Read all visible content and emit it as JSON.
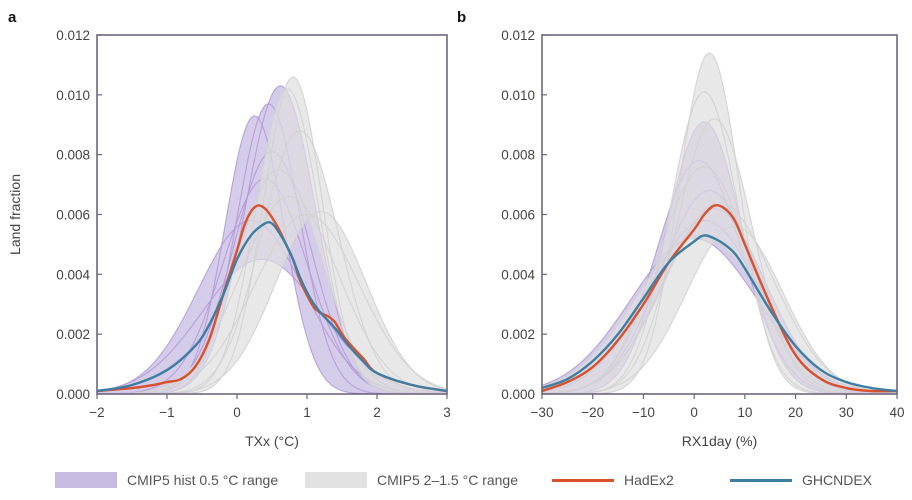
{
  "chart_data": [
    {
      "panel": "a",
      "type": "line",
      "xlabel": "TXx (°C)",
      "ylabel": "Land fraction",
      "xlim": [
        -2,
        3
      ],
      "ylim": [
        0,
        0.012
      ],
      "xticks": [
        -2,
        -1,
        0,
        1,
        2,
        3
      ],
      "xtick_labels": [
        "−2",
        "−1",
        "0",
        "1",
        "2",
        "3"
      ],
      "yticks": [
        0,
        0.002,
        0.004,
        0.006,
        0.008,
        0.01,
        0.012
      ],
      "ytick_labels": [
        "0.000",
        "0.002",
        "0.004",
        "0.006",
        "0.008",
        "0.010",
        "0.012"
      ],
      "series": [
        {
          "name": "HadEx2",
          "color": "#d9512c",
          "x": [
            -2.0,
            -1.5,
            -1.2,
            -1.0,
            -0.8,
            -0.6,
            -0.4,
            -0.2,
            0.0,
            0.1,
            0.2,
            0.3,
            0.4,
            0.5,
            0.6,
            0.7,
            0.8,
            0.9,
            1.0,
            1.1,
            1.2,
            1.3,
            1.4,
            1.5,
            1.6,
            1.8,
            2.0,
            2.5,
            3.0
          ],
          "y": [
            0.0001,
            0.0002,
            0.0003,
            0.0004,
            0.0005,
            0.0009,
            0.0018,
            0.0033,
            0.0048,
            0.0056,
            0.0061,
            0.0063,
            0.0062,
            0.0059,
            0.0055,
            0.005,
            0.0045,
            0.0038,
            0.0033,
            0.0029,
            0.0027,
            0.0026,
            0.0024,
            0.002,
            0.0017,
            0.0012,
            0.0007,
            0.0003,
            0.0001
          ]
        },
        {
          "name": "GHCNDEX",
          "color": "#3f7ea3",
          "x": [
            -2.0,
            -1.5,
            -1.0,
            -0.6,
            -0.4,
            -0.2,
            0.0,
            0.2,
            0.4,
            0.5,
            0.6,
            0.7,
            0.8,
            0.9,
            1.0,
            1.1,
            1.2,
            1.4,
            1.6,
            1.8,
            2.0,
            2.5,
            3.0
          ],
          "y": [
            0.0001,
            0.0003,
            0.0008,
            0.0016,
            0.0023,
            0.0033,
            0.0045,
            0.0053,
            0.0057,
            0.0057,
            0.0054,
            0.005,
            0.0045,
            0.0039,
            0.0034,
            0.003,
            0.0027,
            0.0022,
            0.0016,
            0.0011,
            0.0007,
            0.0003,
            0.0001
          ]
        }
      ],
      "bands": [
        {
          "name": "CMIP5 hist 0.5 °C range",
          "color": "#c7bbe2",
          "line_color": "#b29bd9",
          "curves": [
            {
              "mu": 0.25,
              "sd": 0.42,
              "peak": 0.0093
            },
            {
              "mu": 0.45,
              "sd": 0.45,
              "peak": 0.0097
            },
            {
              "mu": 0.62,
              "sd": 0.5,
              "peak": 0.0103
            },
            {
              "mu": 0.4,
              "sd": 0.6,
              "peak": 0.0072
            },
            {
              "mu": 0.2,
              "sd": 0.75,
              "peak": 0.0058
            },
            {
              "mu": 0.5,
              "sd": 0.55,
              "peak": 0.0081
            },
            {
              "mu": 0.35,
              "sd": 0.85,
              "peak": 0.0045
            }
          ]
        },
        {
          "name": "CMIP5 2–1.5 °C range",
          "color": "#dedede",
          "line_color": "#d2d2d2",
          "curves": [
            {
              "mu": 0.8,
              "sd": 0.42,
              "peak": 0.0106
            },
            {
              "mu": 0.72,
              "sd": 0.45,
              "peak": 0.0102
            },
            {
              "mu": 0.9,
              "sd": 0.55,
              "peak": 0.0088
            },
            {
              "mu": 0.75,
              "sd": 0.7,
              "peak": 0.0066
            },
            {
              "mu": 1.0,
              "sd": 0.75,
              "peak": 0.006
            },
            {
              "mu": 1.2,
              "sd": 0.65,
              "peak": 0.0061
            },
            {
              "mu": 0.6,
              "sd": 0.6,
              "peak": 0.0075
            }
          ]
        }
      ]
    },
    {
      "panel": "b",
      "type": "line",
      "xlabel": "RX1day (%)",
      "ylabel": "",
      "xlim": [
        -30,
        40
      ],
      "ylim": [
        0,
        0.012
      ],
      "xticks": [
        -30,
        -20,
        -10,
        0,
        10,
        20,
        30,
        40
      ],
      "xtick_labels": [
        "−30",
        "−20",
        "−10",
        "0",
        "10",
        "20",
        "30",
        "40"
      ],
      "yticks": [
        0,
        0.002,
        0.004,
        0.006,
        0.008,
        0.01,
        0.012
      ],
      "ytick_labels": [
        "0.000",
        "0.002",
        "0.004",
        "0.006",
        "0.008",
        "0.010",
        "0.012"
      ],
      "series": [
        {
          "name": "HadEx2",
          "color": "#d9512c",
          "x": [
            -30,
            -25,
            -20,
            -15,
            -10,
            -5,
            0,
            2,
            4,
            6,
            8,
            10,
            15,
            20,
            25,
            30,
            35,
            40
          ],
          "y": [
            0.0001,
            0.0004,
            0.0009,
            0.0018,
            0.003,
            0.0044,
            0.0055,
            0.006,
            0.0063,
            0.0062,
            0.0058,
            0.005,
            0.003,
            0.0013,
            0.0005,
            0.0002,
            0.0001,
            0.0001
          ]
        },
        {
          "name": "GHCNDEX",
          "color": "#3f7ea3",
          "x": [
            -30,
            -25,
            -20,
            -15,
            -10,
            -5,
            0,
            2,
            4,
            6,
            8,
            10,
            15,
            20,
            25,
            30,
            35,
            40
          ],
          "y": [
            0.0002,
            0.0005,
            0.0011,
            0.002,
            0.0032,
            0.0044,
            0.0051,
            0.0053,
            0.0052,
            0.005,
            0.0047,
            0.0042,
            0.0028,
            0.0016,
            0.0008,
            0.0004,
            0.0002,
            0.0001
          ]
        }
      ],
      "bands": [
        {
          "name": "CMIP5 hist 0.5 °C range",
          "color": "#c7bbe2",
          "line_color": "#b29bd9",
          "curves": [
            {
              "mu": 2,
              "sd": 7.5,
              "peak": 0.0091
            },
            {
              "mu": 1,
              "sd": 8.5,
              "peak": 0.0078
            },
            {
              "mu": 3,
              "sd": 9.5,
              "peak": 0.0068
            },
            {
              "mu": 2,
              "sd": 11,
              "peak": 0.0058
            },
            {
              "mu": 0,
              "sd": 12.5,
              "peak": 0.0052
            },
            {
              "mu": 4,
              "sd": 10,
              "peak": 0.0062
            }
          ]
        },
        {
          "name": "CMIP5 2–1.5 °C range",
          "color": "#dedede",
          "line_color": "#d2d2d2",
          "curves": [
            {
              "mu": 3,
              "sd": 6.0,
              "peak": 0.0114
            },
            {
              "mu": 2,
              "sd": 6.8,
              "peak": 0.0101
            },
            {
              "mu": 4,
              "sd": 7.5,
              "peak": 0.0092
            },
            {
              "mu": 2,
              "sd": 9.0,
              "peak": 0.0076
            },
            {
              "mu": 5,
              "sd": 10.5,
              "peak": 0.0064
            },
            {
              "mu": 1,
              "sd": 12.5,
              "peak": 0.0053
            },
            {
              "mu": 8,
              "sd": 9.5,
              "peak": 0.0056
            }
          ]
        }
      ]
    }
  ],
  "legend": {
    "items": [
      {
        "label": "CMIP5 hist 0.5 °C range",
        "kind": "fill",
        "color": "#c7bbe2"
      },
      {
        "label": "CMIP5 2–1.5 °C range",
        "kind": "fill",
        "color": "#e2e2e2"
      },
      {
        "label": "HadEx2",
        "kind": "line",
        "color": "#d9512c"
      },
      {
        "label": "GHCNDEX",
        "kind": "line",
        "color": "#3f7ea3"
      }
    ]
  }
}
